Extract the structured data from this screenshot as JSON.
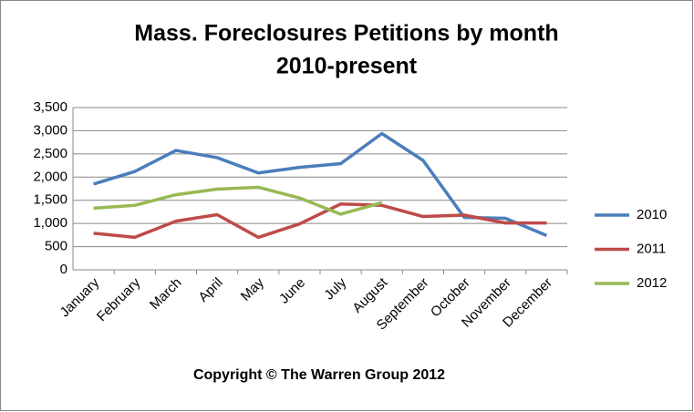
{
  "chart_data": {
    "type": "line",
    "title": [
      "Mass.  Foreclosures Petitions by month",
      "2010-present"
    ],
    "annotation": "Copyright © The Warren Group 2012",
    "categories": [
      "January",
      "February",
      "March",
      "April",
      "May",
      "June",
      "July",
      "August",
      "September",
      "October",
      "November",
      "December"
    ],
    "series": [
      {
        "name": "2010",
        "color": "#4a7ebb",
        "values": [
          1850,
          2120,
          2575,
          2420,
          2090,
          2210,
          2290,
          2940,
          2360,
          1130,
          1110,
          740
        ]
      },
      {
        "name": "2011",
        "color": "#be4b48",
        "values": [
          790,
          700,
          1050,
          1190,
          700,
          990,
          1420,
          1390,
          1150,
          1180,
          1010,
          1010
        ]
      },
      {
        "name": "2012",
        "color": "#98b954",
        "values": [
          1330,
          1390,
          1620,
          1740,
          1780,
          1550,
          1200,
          1450,
          null,
          null,
          null,
          null
        ]
      }
    ],
    "ylim": [
      0,
      3500
    ],
    "yticks": [
      0,
      500,
      {
        "value": 1000,
        "label": "1,000"
      },
      {
        "value": 1500,
        "label": "1,500"
      },
      {
        "value": 2000,
        "label": "2,000"
      },
      {
        "value": 2500,
        "label": "2,500"
      },
      {
        "value": 3000,
        "label": "3,000"
      },
      {
        "value": 3500,
        "label": "3,500"
      }
    ],
    "grid": true,
    "legend": "right"
  }
}
